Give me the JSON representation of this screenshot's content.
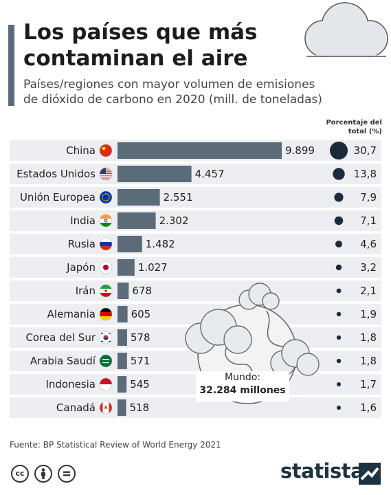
{
  "header": {
    "title_line1": "Los países que más",
    "title_line2": "contaminan el aire",
    "subtitle_line1": "Países/regiones con mayor volumen de emisiones",
    "subtitle_line2": "de dióxido de carbono en 2020 (mill. de toneladas)"
  },
  "pct_header_line1": "Porcentaje del",
  "pct_header_line2": "total (%)",
  "world": {
    "label": "Mundo:",
    "value": "32.284 millones"
  },
  "source": "Fuente: BP Statistical Review of World Energy 2021",
  "footer": {
    "cc_icons": [
      "creative-commons-icon",
      "attribution-icon",
      "no-derivatives-icon"
    ],
    "brand": "statista"
  },
  "colors": {
    "bar": "#5b6b78",
    "row_band": "#eceef1",
    "dot": "#1b2b3c",
    "title_accent": "#5a6b78",
    "brand": "#1e3342"
  },
  "chart_data": {
    "type": "bar",
    "orientation": "horizontal",
    "categories": [
      "China",
      "Estados Unidos",
      "Unión Europea",
      "India",
      "Rusia",
      "Japón",
      "Irán",
      "Alemania",
      "Corea del Sur",
      "Arabia Saudí",
      "Indonesia",
      "Canadá"
    ],
    "flags": [
      "china-flag-icon",
      "usa-flag-icon",
      "eu-flag-icon",
      "india-flag-icon",
      "russia-flag-icon",
      "japan-flag-icon",
      "iran-flag-icon",
      "germany-flag-icon",
      "south-korea-flag-icon",
      "saudi-arabia-flag-icon",
      "indonesia-flag-icon",
      "canada-flag-icon"
    ],
    "values": [
      9899,
      4457,
      2551,
      2302,
      1482,
      1027,
      678,
      605,
      578,
      571,
      545,
      518
    ],
    "value_labels": [
      "9.899",
      "4.457",
      "2.551",
      "2.302",
      "1.482",
      "1.027",
      "678",
      "605",
      "578",
      "571",
      "545",
      "518"
    ],
    "percentages": [
      30.7,
      13.8,
      7.9,
      7.1,
      4.6,
      3.2,
      2.1,
      1.9,
      1.8,
      1.8,
      1.7,
      1.6
    ],
    "percentage_labels": [
      "30,7",
      "13,8",
      "7,9",
      "7,1",
      "4,6",
      "3,2",
      "2,1",
      "1,9",
      "1,8",
      "1,8",
      "1,7",
      "1,6"
    ],
    "xlim": [
      0,
      9899
    ]
  }
}
